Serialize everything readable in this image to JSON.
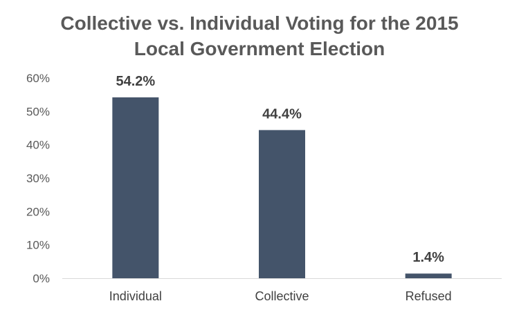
{
  "chart_data": {
    "type": "bar",
    "title": "Collective vs. Individual Voting for the 2015 Local Government Election",
    "title_lines": [
      "Collective vs. Individual Voting for the 2015",
      "Local Government Election"
    ],
    "xlabel": "",
    "ylabel": "",
    "categories": [
      "Individual",
      "Collective",
      "Refused"
    ],
    "values": [
      54.2,
      44.4,
      1.4
    ],
    "data_labels": [
      "54.2%",
      "44.4%",
      "1.4%"
    ],
    "ylim": [
      0,
      60
    ],
    "yticks": [
      0,
      10,
      20,
      30,
      40,
      50,
      60
    ],
    "ytick_labels": [
      "0%",
      "10%",
      "20%",
      "30%",
      "40%",
      "50%",
      "60%"
    ],
    "grid": false,
    "legend": "none",
    "bar_color": "#44546a",
    "axis_color": "#d9d9d9"
  }
}
